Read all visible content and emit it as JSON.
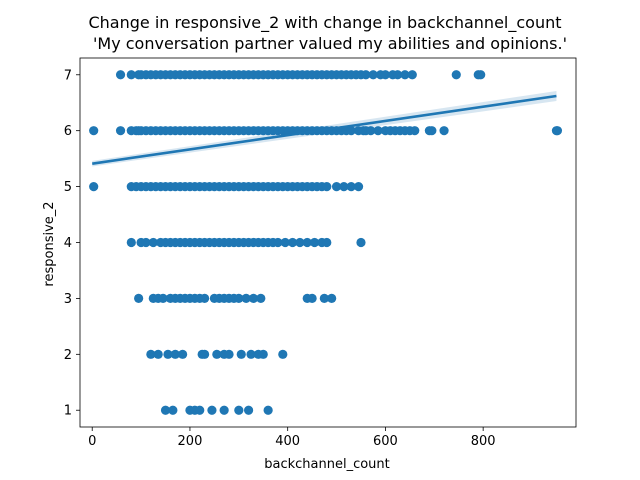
{
  "chart_data": {
    "type": "scatter",
    "title": "Change in responsive_2 with change in backchannel_count",
    "subtitle": "'My conversation partner valued my abilities and opinions.'",
    "xlabel": "backchannel_count",
    "ylabel": "responsive_2",
    "xlim": [
      -25,
      990
    ],
    "ylim": [
      0.7,
      7.3
    ],
    "xticks": [
      0,
      200,
      400,
      600,
      800
    ],
    "yticks": [
      1,
      2,
      3,
      4,
      5,
      6,
      7
    ],
    "grid": false,
    "colors": {
      "points": "#1f77b4",
      "line": "#1f77b4",
      "band": "#1f77b4"
    },
    "series": [
      {
        "type": "scatter",
        "points": [
          [
            58,
            7
          ],
          [
            80,
            7
          ],
          [
            95,
            7
          ],
          [
            100,
            7
          ],
          [
            110,
            7
          ],
          [
            120,
            7
          ],
          [
            130,
            7
          ],
          [
            140,
            7
          ],
          [
            150,
            7
          ],
          [
            160,
            7
          ],
          [
            170,
            7
          ],
          [
            180,
            7
          ],
          [
            190,
            7
          ],
          [
            200,
            7
          ],
          [
            210,
            7
          ],
          [
            220,
            7
          ],
          [
            230,
            7
          ],
          [
            240,
            7
          ],
          [
            250,
            7
          ],
          [
            260,
            7
          ],
          [
            270,
            7
          ],
          [
            280,
            7
          ],
          [
            290,
            7
          ],
          [
            300,
            7
          ],
          [
            310,
            7
          ],
          [
            320,
            7
          ],
          [
            330,
            7
          ],
          [
            340,
            7
          ],
          [
            350,
            7
          ],
          [
            360,
            7
          ],
          [
            370,
            7
          ],
          [
            380,
            7
          ],
          [
            390,
            7
          ],
          [
            400,
            7
          ],
          [
            410,
            7
          ],
          [
            420,
            7
          ],
          [
            430,
            7
          ],
          [
            440,
            7
          ],
          [
            450,
            7
          ],
          [
            460,
            7
          ],
          [
            470,
            7
          ],
          [
            480,
            7
          ],
          [
            490,
            7
          ],
          [
            500,
            7
          ],
          [
            510,
            7
          ],
          [
            520,
            7
          ],
          [
            530,
            7
          ],
          [
            540,
            7
          ],
          [
            550,
            7
          ],
          [
            560,
            7
          ],
          [
            575,
            7
          ],
          [
            590,
            7
          ],
          [
            600,
            7
          ],
          [
            615,
            7
          ],
          [
            625,
            7
          ],
          [
            640,
            7
          ],
          [
            655,
            7
          ],
          [
            745,
            7
          ],
          [
            790,
            7
          ],
          [
            795,
            7
          ],
          [
            3,
            6
          ],
          [
            58,
            6
          ],
          [
            80,
            6
          ],
          [
            90,
            6
          ],
          [
            95,
            6
          ],
          [
            100,
            6
          ],
          [
            110,
            6
          ],
          [
            120,
            6
          ],
          [
            130,
            6
          ],
          [
            140,
            6
          ],
          [
            150,
            6
          ],
          [
            160,
            6
          ],
          [
            170,
            6
          ],
          [
            180,
            6
          ],
          [
            190,
            6
          ],
          [
            200,
            6
          ],
          [
            210,
            6
          ],
          [
            220,
            6
          ],
          [
            230,
            6
          ],
          [
            240,
            6
          ],
          [
            250,
            6
          ],
          [
            260,
            6
          ],
          [
            270,
            6
          ],
          [
            280,
            6
          ],
          [
            290,
            6
          ],
          [
            300,
            6
          ],
          [
            310,
            6
          ],
          [
            320,
            6
          ],
          [
            330,
            6
          ],
          [
            340,
            6
          ],
          [
            350,
            6
          ],
          [
            360,
            6
          ],
          [
            370,
            6
          ],
          [
            380,
            6
          ],
          [
            390,
            6
          ],
          [
            400,
            6
          ],
          [
            410,
            6
          ],
          [
            420,
            6
          ],
          [
            430,
            6
          ],
          [
            440,
            6
          ],
          [
            450,
            6
          ],
          [
            460,
            6
          ],
          [
            470,
            6
          ],
          [
            480,
            6
          ],
          [
            490,
            6
          ],
          [
            500,
            6
          ],
          [
            510,
            6
          ],
          [
            520,
            6
          ],
          [
            530,
            6
          ],
          [
            545,
            6
          ],
          [
            555,
            6
          ],
          [
            560,
            6
          ],
          [
            570,
            6
          ],
          [
            585,
            6
          ],
          [
            600,
            6
          ],
          [
            610,
            6
          ],
          [
            620,
            6
          ],
          [
            630,
            6
          ],
          [
            640,
            6
          ],
          [
            650,
            6
          ],
          [
            660,
            6
          ],
          [
            690,
            6
          ],
          [
            695,
            6
          ],
          [
            720,
            6
          ],
          [
            950,
            6
          ],
          [
            952,
            6
          ],
          [
            3,
            5
          ],
          [
            80,
            5
          ],
          [
            90,
            5
          ],
          [
            100,
            5
          ],
          [
            110,
            5
          ],
          [
            120,
            5
          ],
          [
            130,
            5
          ],
          [
            140,
            5
          ],
          [
            150,
            5
          ],
          [
            160,
            5
          ],
          [
            170,
            5
          ],
          [
            180,
            5
          ],
          [
            190,
            5
          ],
          [
            200,
            5
          ],
          [
            210,
            5
          ],
          [
            220,
            5
          ],
          [
            230,
            5
          ],
          [
            240,
            5
          ],
          [
            250,
            5
          ],
          [
            260,
            5
          ],
          [
            270,
            5
          ],
          [
            280,
            5
          ],
          [
            290,
            5
          ],
          [
            300,
            5
          ],
          [
            310,
            5
          ],
          [
            320,
            5
          ],
          [
            330,
            5
          ],
          [
            340,
            5
          ],
          [
            350,
            5
          ],
          [
            360,
            5
          ],
          [
            370,
            5
          ],
          [
            380,
            5
          ],
          [
            390,
            5
          ],
          [
            400,
            5
          ],
          [
            410,
            5
          ],
          [
            420,
            5
          ],
          [
            430,
            5
          ],
          [
            440,
            5
          ],
          [
            450,
            5
          ],
          [
            460,
            5
          ],
          [
            470,
            5
          ],
          [
            480,
            5
          ],
          [
            500,
            5
          ],
          [
            515,
            5
          ],
          [
            530,
            5
          ],
          [
            545,
            5
          ],
          [
            80,
            4
          ],
          [
            100,
            4
          ],
          [
            110,
            4
          ],
          [
            125,
            4
          ],
          [
            140,
            4
          ],
          [
            150,
            4
          ],
          [
            160,
            4
          ],
          [
            170,
            4
          ],
          [
            180,
            4
          ],
          [
            190,
            4
          ],
          [
            200,
            4
          ],
          [
            210,
            4
          ],
          [
            220,
            4
          ],
          [
            230,
            4
          ],
          [
            240,
            4
          ],
          [
            250,
            4
          ],
          [
            260,
            4
          ],
          [
            270,
            4
          ],
          [
            280,
            4
          ],
          [
            290,
            4
          ],
          [
            300,
            4
          ],
          [
            310,
            4
          ],
          [
            320,
            4
          ],
          [
            330,
            4
          ],
          [
            340,
            4
          ],
          [
            350,
            4
          ],
          [
            360,
            4
          ],
          [
            370,
            4
          ],
          [
            380,
            4
          ],
          [
            395,
            4
          ],
          [
            410,
            4
          ],
          [
            425,
            4
          ],
          [
            440,
            4
          ],
          [
            455,
            4
          ],
          [
            470,
            4
          ],
          [
            480,
            4
          ],
          [
            550,
            4
          ],
          [
            95,
            3
          ],
          [
            125,
            3
          ],
          [
            135,
            3
          ],
          [
            145,
            3
          ],
          [
            160,
            3
          ],
          [
            170,
            3
          ],
          [
            180,
            3
          ],
          [
            190,
            3
          ],
          [
            200,
            3
          ],
          [
            210,
            3
          ],
          [
            220,
            3
          ],
          [
            230,
            3
          ],
          [
            250,
            3
          ],
          [
            260,
            3
          ],
          [
            270,
            3
          ],
          [
            280,
            3
          ],
          [
            290,
            3
          ],
          [
            300,
            3
          ],
          [
            315,
            3
          ],
          [
            330,
            3
          ],
          [
            345,
            3
          ],
          [
            440,
            3
          ],
          [
            450,
            3
          ],
          [
            475,
            3
          ],
          [
            490,
            3
          ],
          [
            120,
            2
          ],
          [
            135,
            2
          ],
          [
            155,
            2
          ],
          [
            170,
            2
          ],
          [
            185,
            2
          ],
          [
            225,
            2
          ],
          [
            230,
            2
          ],
          [
            255,
            2
          ],
          [
            270,
            2
          ],
          [
            280,
            2
          ],
          [
            305,
            2
          ],
          [
            325,
            2
          ],
          [
            340,
            2
          ],
          [
            350,
            2
          ],
          [
            390,
            2
          ],
          [
            150,
            1
          ],
          [
            165,
            1
          ],
          [
            200,
            1
          ],
          [
            210,
            1
          ],
          [
            220,
            1
          ],
          [
            245,
            1
          ],
          [
            270,
            1
          ],
          [
            300,
            1
          ],
          [
            320,
            1
          ],
          [
            360,
            1
          ]
        ]
      },
      {
        "type": "regression-line",
        "from": [
          0,
          5.41
        ],
        "to": [
          950,
          6.62
        ],
        "ci_start": 0.05,
        "ci_end": 0.09
      }
    ]
  }
}
